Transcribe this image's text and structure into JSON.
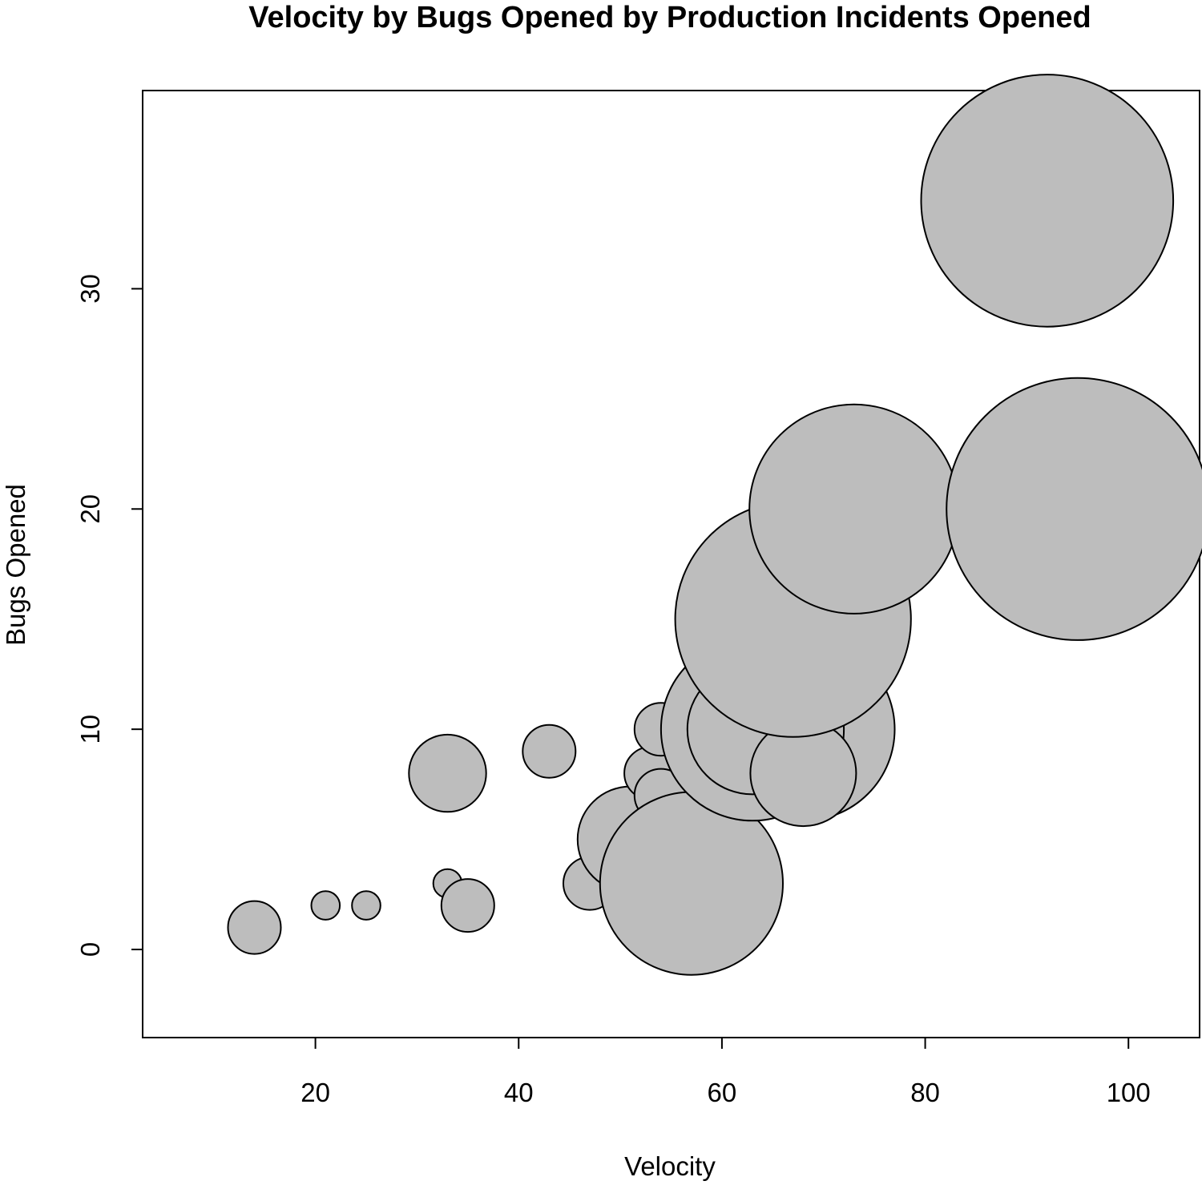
{
  "chart_data": {
    "type": "scatter",
    "variant": "bubble",
    "title": "Velocity by Bugs Opened by Production Incidents Opened",
    "xlabel": "Velocity",
    "ylabel": "Bugs Opened",
    "xlim": [
      3,
      107
    ],
    "ylim": [
      -4,
      39
    ],
    "x_ticks": [
      20,
      40,
      60,
      80,
      100
    ],
    "y_ticks": [
      0,
      10,
      20,
      30
    ],
    "grid": false,
    "legend": "none",
    "bubble_fill": "#bdbdbd",
    "bubble_stroke": "#000000",
    "series": [
      {
        "points": [
          {
            "x": 14,
            "y": 1,
            "r": 2.6
          },
          {
            "x": 21,
            "y": 2,
            "r": 1.4
          },
          {
            "x": 25,
            "y": 2,
            "r": 1.4
          },
          {
            "x": 33,
            "y": 3,
            "r": 1.4
          },
          {
            "x": 35,
            "y": 2,
            "r": 2.6
          },
          {
            "x": 33,
            "y": 8,
            "r": 3.8
          },
          {
            "x": 43,
            "y": 9,
            "r": 2.6
          },
          {
            "x": 47,
            "y": 3,
            "r": 2.6
          },
          {
            "x": 51,
            "y": 5,
            "r": 5.2
          },
          {
            "x": 53,
            "y": 8,
            "r": 2.6
          },
          {
            "x": 54,
            "y": 7,
            "r": 2.6
          },
          {
            "x": 54,
            "y": 10,
            "r": 2.6
          },
          {
            "x": 57,
            "y": 3,
            "r": 9.0
          },
          {
            "x": 63,
            "y": 8,
            "r": 3.3
          },
          {
            "x": 68,
            "y": 10,
            "r": 9.0
          },
          {
            "x": 63,
            "y": 10,
            "r": 9.0
          },
          {
            "x": 63,
            "y": 10,
            "r": 6.4
          },
          {
            "x": 68,
            "y": 8,
            "r": 5.2
          },
          {
            "x": 67,
            "y": 15,
            "r": 11.6
          },
          {
            "x": 73,
            "y": 20,
            "r": 10.3
          },
          {
            "x": 95,
            "y": 20,
            "r": 12.9
          },
          {
            "x": 92,
            "y": 34,
            "r": 12.4
          }
        ]
      }
    ]
  }
}
